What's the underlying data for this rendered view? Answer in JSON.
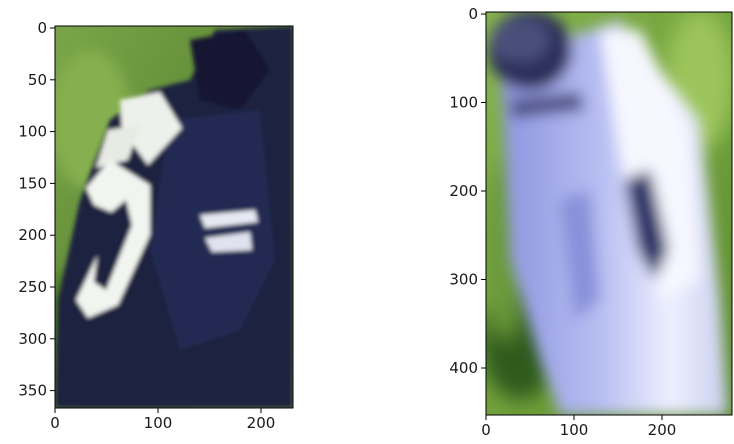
{
  "panels": [
    {
      "name": "left-panel",
      "content": "football player close-up, dark navy jersey with white number, green grass background",
      "palette": {
        "grass": "#6f9a3c",
        "grass_dark": "#4f7a2a",
        "jersey": "#1b2440",
        "jersey_light": "#2a3760",
        "number": "#f2f4f0"
      },
      "x_ticks": [
        "0",
        "100",
        "200"
      ],
      "y_ticks": [
        "0",
        "50",
        "100",
        "150",
        "200",
        "250",
        "300",
        "350"
      ]
    },
    {
      "name": "right-panel",
      "content": "blurred football player, lavender/blue-white uniform, green grass background",
      "palette": {
        "grass": "#7fae45",
        "grass_dark": "#3f6a22",
        "uniform": "#9ea6e8",
        "uniform_light": "#f3f4ff",
        "shadow": "#2c3266"
      },
      "x_ticks": [
        "0",
        "100",
        "200"
      ],
      "y_ticks": [
        "0",
        "100",
        "200",
        "300",
        "400"
      ]
    }
  ]
}
